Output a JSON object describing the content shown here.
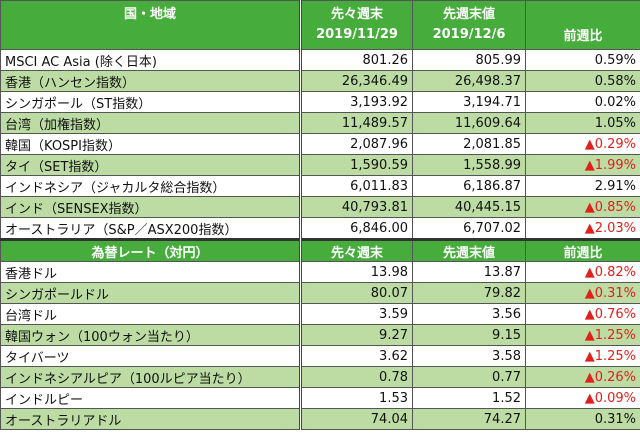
{
  "colors": {
    "header": "#46ac3c",
    "alt_row": "#bcdca4",
    "negative": "#e0201c"
  },
  "stocks": {
    "headers": [
      "国・地域",
      "先々週末\n2019/11/29",
      "先週末値\n2019/12/6",
      "前週比"
    ],
    "rows": [
      [
        "MSCI AC Asia (除く日本)",
        "801.26",
        "805.99",
        "0.59%"
      ],
      [
        "香港（ハンセン指数）",
        "26,346.49",
        "26,498.37",
        "0.58%"
      ],
      [
        "シンガポール（ST指数）",
        "3,193.92",
        "3,194.71",
        "0.02%"
      ],
      [
        "台湾（加権指数）",
        "11,489.57",
        "11,609.64",
        "1.05%"
      ],
      [
        "韓国（KOSPI指数）",
        "2,087.96",
        "2,081.85",
        "▲0.29%"
      ],
      [
        "タイ（SET指数）",
        "1,590.59",
        "1,558.99",
        "▲1.99%"
      ],
      [
        "インドネシア（ジャカルタ総合指数）",
        "6,011.83",
        "6,186.87",
        "2.91%"
      ],
      [
        "インド（SENSEX指数）",
        "40,793.81",
        "40,445.15",
        "▲0.85%"
      ],
      [
        "オーストラリア（S&P／ASX200指数）",
        "6,846.00",
        "6,707.02",
        "▲2.03%"
      ]
    ]
  },
  "fx": {
    "headers": [
      "為替レート（対円）",
      "先々週末",
      "先週末値",
      "前週比"
    ],
    "rows": [
      [
        "香港ドル",
        "13.98",
        "13.87",
        "▲0.82%"
      ],
      [
        "シンガポールドル",
        "80.07",
        "79.82",
        "▲0.31%"
      ],
      [
        "台湾ドル",
        "3.59",
        "3.56",
        "▲0.76%"
      ],
      [
        "韓国ウォン（100ウォン当たり）",
        "9.27",
        "9.15",
        "▲1.25%"
      ],
      [
        "タイバーツ",
        "3.62",
        "3.58",
        "▲1.25%"
      ],
      [
        "インドネシアルピア（100ルピア当たり）",
        "0.78",
        "0.77",
        "▲0.26%"
      ],
      [
        "インドルピー",
        "1.53",
        "1.52",
        "▲0.09%"
      ],
      [
        "オーストラリアドル",
        "74.04",
        "74.27",
        "0.31%"
      ]
    ]
  }
}
